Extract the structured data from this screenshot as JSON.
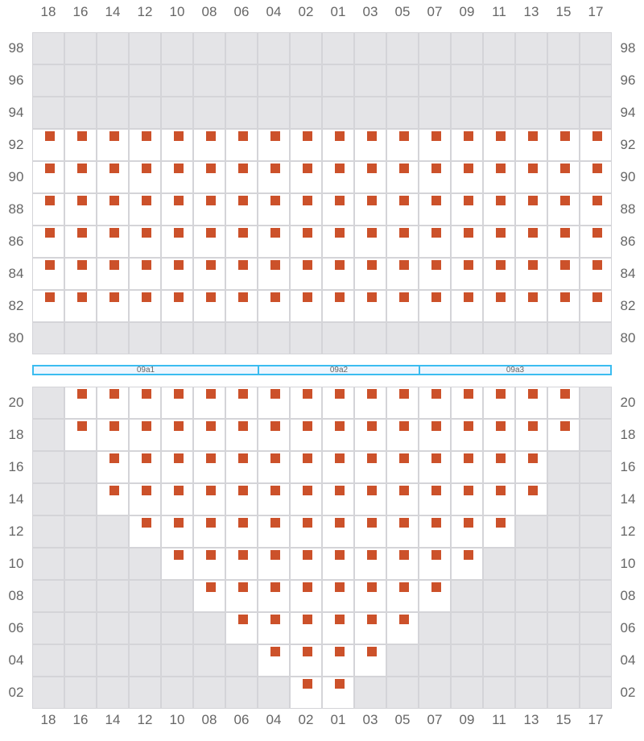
{
  "columns": [
    "18",
    "16",
    "14",
    "12",
    "10",
    "08",
    "06",
    "04",
    "02",
    "01",
    "03",
    "05",
    "07",
    "09",
    "11",
    "13",
    "15",
    "17"
  ],
  "colors": {
    "seat": "#cc512a",
    "available": "#ffffff",
    "unavailable": "#e4e4e7",
    "zone_border": "#3bbcf0"
  },
  "upper_section": {
    "rows": [
      {
        "label": "98",
        "open": null
      },
      {
        "label": "96",
        "open": null
      },
      {
        "label": "94",
        "open": null
      },
      {
        "label": "92",
        "open": [
          "18",
          "17"
        ]
      },
      {
        "label": "90",
        "open": [
          "18",
          "17"
        ]
      },
      {
        "label": "88",
        "open": [
          "18",
          "17"
        ]
      },
      {
        "label": "86",
        "open": [
          "18",
          "17"
        ]
      },
      {
        "label": "84",
        "open": [
          "18",
          "17"
        ]
      },
      {
        "label": "82",
        "open": [
          "18",
          "17"
        ]
      },
      {
        "label": "80",
        "open": null
      }
    ]
  },
  "zones": [
    {
      "label": "09a1",
      "from": "18",
      "to": "06"
    },
    {
      "label": "09a2",
      "from": "04",
      "to": "05"
    },
    {
      "label": "09a3",
      "from": "07",
      "to": "17"
    }
  ],
  "lower_section": {
    "rows": [
      {
        "label": "20",
        "open": [
          "16",
          "15"
        ]
      },
      {
        "label": "18",
        "open": [
          "16",
          "15"
        ]
      },
      {
        "label": "16",
        "open": [
          "14",
          "13"
        ]
      },
      {
        "label": "14",
        "open": [
          "14",
          "13"
        ]
      },
      {
        "label": "12",
        "open": [
          "12",
          "11"
        ]
      },
      {
        "label": "10",
        "open": [
          "10",
          "09"
        ]
      },
      {
        "label": "08",
        "open": [
          "08",
          "07"
        ]
      },
      {
        "label": "06",
        "open": [
          "06",
          "05"
        ]
      },
      {
        "label": "04",
        "open": [
          "04",
          "03"
        ]
      },
      {
        "label": "02",
        "open": [
          "02",
          "01"
        ]
      }
    ]
  }
}
